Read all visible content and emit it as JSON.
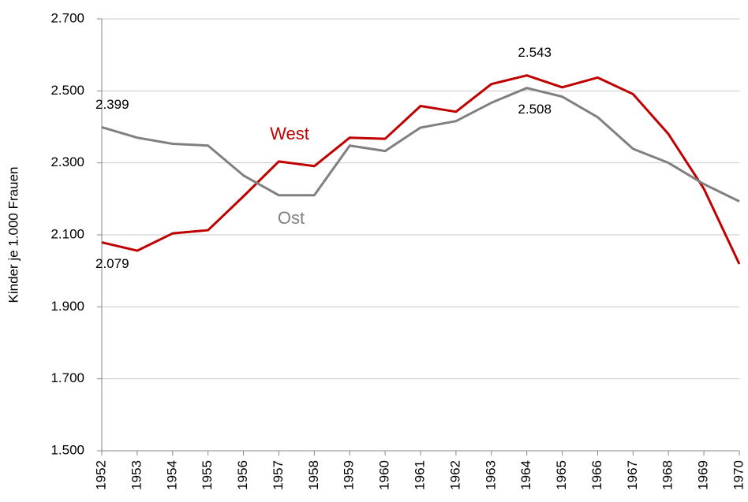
{
  "chart_data": {
    "type": "line",
    "y_label": "Kinder je 1.000 Frauen",
    "categories": [
      "1952",
      "1953",
      "1954",
      "1955",
      "1956",
      "1957",
      "1958",
      "1959",
      "1960",
      "1961",
      "1962",
      "1963",
      "1964",
      "1965",
      "1966",
      "1967",
      "1968",
      "1969",
      "1970"
    ],
    "series": [
      {
        "name": "West",
        "color": "#c00000",
        "values": [
          2079,
          2056,
          2104,
          2113,
          2207,
          2304,
          2291,
          2370,
          2367,
          2458,
          2442,
          2519,
          2543,
          2510,
          2537,
          2491,
          2380,
          2228,
          2019
        ],
        "value_labels": [
          "2.079",
          null,
          null,
          null,
          null,
          null,
          null,
          null,
          null,
          null,
          null,
          null,
          "2.543",
          null,
          null,
          null,
          null,
          null,
          null
        ]
      },
      {
        "name": "Ost",
        "color": "#808080",
        "values": [
          2399,
          2370,
          2353,
          2348,
          2265,
          2210,
          2210,
          2348,
          2333,
          2398,
          2416,
          2467,
          2508,
          2484,
          2427,
          2339,
          2300,
          2241,
          2193
        ],
        "value_labels": [
          "2.399",
          null,
          null,
          null,
          null,
          null,
          null,
          null,
          null,
          null,
          null,
          null,
          "2.508",
          null,
          null,
          null,
          null,
          null,
          null
        ]
      }
    ],
    "ylim": [
      1500,
      2700
    ],
    "yticks": [
      {
        "value": 1500,
        "label": "1.500"
      },
      {
        "value": 1700,
        "label": "1.700"
      },
      {
        "value": 1900,
        "label": "1.900"
      },
      {
        "value": 2100,
        "label": "2.100"
      },
      {
        "value": 2300,
        "label": "2.300"
      },
      {
        "value": 2500,
        "label": "2.500"
      },
      {
        "value": 2700,
        "label": "2.700"
      }
    ],
    "grid": true
  }
}
